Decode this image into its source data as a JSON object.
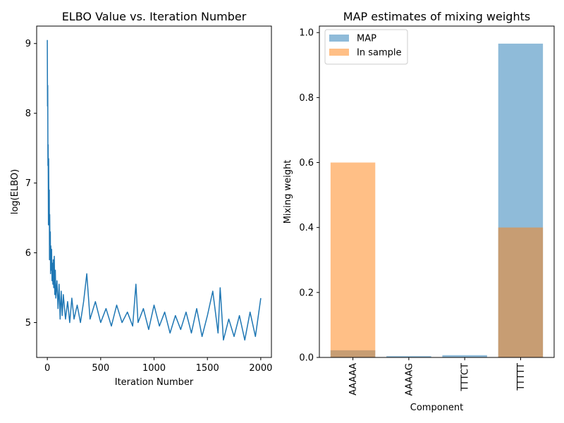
{
  "chart_data": [
    {
      "type": "line",
      "title": "ELBO Value vs. Iteration Number",
      "xlabel": "Iteration Number",
      "ylabel": "log(ELBO)",
      "xlim": [
        -100,
        2100
      ],
      "ylim": [
        4.5,
        9.25
      ],
      "xticks": [
        0,
        500,
        1000,
        1500,
        2000
      ],
      "yticks": [
        5,
        6,
        7,
        8,
        9
      ],
      "color": "#1f77b4",
      "series": [
        {
          "x": [
            0,
            2,
            4,
            6,
            8,
            10,
            12,
            15,
            18,
            20,
            22,
            25,
            28,
            30,
            33,
            36,
            40,
            44,
            48,
            52,
            56,
            60,
            65,
            70,
            75,
            80,
            90,
            100,
            110,
            120,
            130,
            140,
            150,
            170,
            190,
            210,
            230,
            250,
            280,
            310,
            340,
            370,
            400,
            450,
            500,
            550,
            600,
            650,
            700,
            750,
            800,
            830,
            850,
            900,
            950,
            1000,
            1050,
            1100,
            1150,
            1200,
            1250,
            1300,
            1350,
            1400,
            1450,
            1500,
            1550,
            1600,
            1620,
            1650,
            1700,
            1750,
            1800,
            1850,
            1900,
            1950,
            2000
          ],
          "y": [
            9.05,
            8.1,
            8.4,
            7.25,
            7.55,
            6.4,
            7.35,
            6.5,
            6.9,
            5.9,
            6.55,
            6.1,
            6.3,
            5.7,
            6.1,
            5.75,
            6.05,
            5.6,
            5.85,
            5.55,
            5.9,
            5.5,
            5.95,
            5.4,
            5.75,
            5.35,
            5.6,
            5.2,
            5.55,
            5.05,
            5.45,
            5.1,
            5.4,
            5.05,
            5.3,
            5.0,
            5.35,
            5.05,
            5.25,
            5.0,
            5.3,
            5.7,
            5.05,
            5.3,
            5.0,
            5.2,
            4.95,
            5.25,
            5.0,
            5.15,
            4.95,
            5.55,
            5.0,
            5.2,
            4.9,
            5.25,
            4.95,
            5.15,
            4.85,
            5.1,
            4.9,
            5.15,
            4.85,
            5.2,
            4.8,
            5.1,
            5.45,
            4.85,
            5.5,
            4.75,
            5.05,
            4.8,
            5.1,
            4.75,
            5.15,
            4.8,
            5.35
          ]
        }
      ]
    },
    {
      "type": "bar",
      "title": "MAP estimates of mixing weights",
      "xlabel": "Component",
      "ylabel": "Mixing weight",
      "categories": [
        "AAAAA",
        "AAAAG",
        "TTTCT",
        "TTTTT"
      ],
      "ylim": [
        0,
        1.02
      ],
      "yticks": [
        0.0,
        0.2,
        0.4,
        0.6,
        0.8,
        1.0
      ],
      "ytick_labels": [
        "0.0",
        "0.2",
        "0.4",
        "0.6",
        "0.8",
        "1.0"
      ],
      "legend_position": "top-left",
      "series": [
        {
          "name": "MAP",
          "color": "#1f77b4",
          "alpha": 0.5,
          "values": [
            0.022,
            0.004,
            0.007,
            0.966
          ]
        },
        {
          "name": "In sample",
          "color": "#ff7f0e",
          "alpha": 0.5,
          "values": [
            0.6,
            0.0,
            0.0,
            0.4
          ]
        }
      ]
    }
  ]
}
